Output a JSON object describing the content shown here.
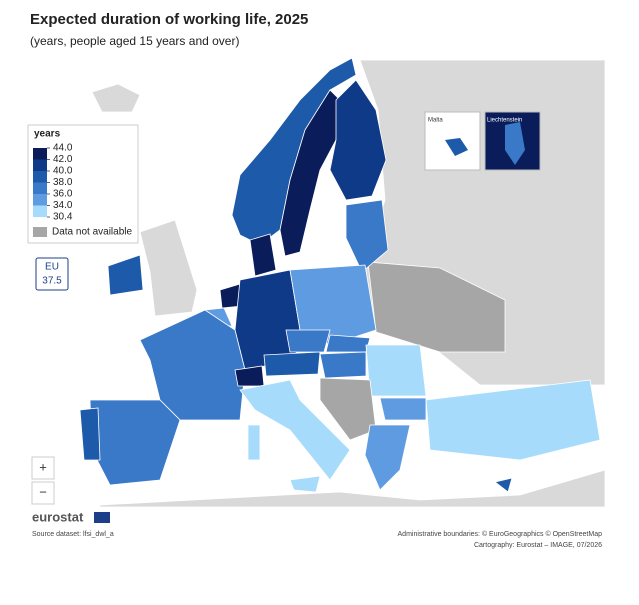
{
  "header": {
    "title": "Expected duration of working life, 2025",
    "subtitle": "(years, people aged 15 years and over)"
  },
  "legend": {
    "title": "years",
    "breaks": [
      {
        "value": 44,
        "label": "44.0"
      },
      {
        "value": 42,
        "label": "42.0"
      },
      {
        "value": 40,
        "label": "40.0"
      },
      {
        "value": 38,
        "label": "38.0"
      },
      {
        "value": 36,
        "label": "36.0"
      },
      {
        "value": 34,
        "label": "34.0"
      },
      {
        "value": 30.4,
        "label": "30.4"
      }
    ],
    "colors": [
      "#0a1d5a",
      "#0f3a88",
      "#1d5aaa",
      "#3a78c8",
      "#5f9be0",
      "#a6dbfb"
    ],
    "na": {
      "label": "Data not available",
      "color": "#a6a6a6"
    }
  },
  "eu": {
    "label": "EU",
    "value": 37.5
  },
  "insets": [
    "Malta",
    "Liechtenstein"
  ],
  "zoom": [
    "+",
    "−"
  ],
  "footer": {
    "logo": "eurostat",
    "source": "Source dataset: lfsi_dwl_a",
    "credits": [
      "Administrative boundaries: © EuroGeographics © OpenStreetMap",
      "Cartography: Eurostat – IMAGE, 07/2026"
    ]
  }
}
